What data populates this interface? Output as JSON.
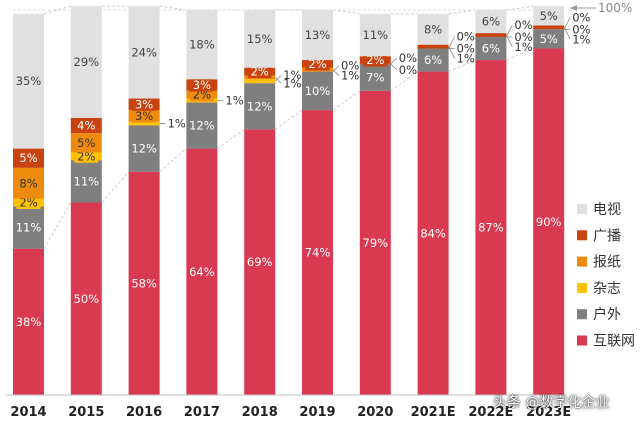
{
  "chart_data": {
    "type": "bar",
    "stacked": true,
    "categories": [
      "2014",
      "2015",
      "2016",
      "2017",
      "2018",
      "2019",
      "2020",
      "2021E",
      "2022E",
      "2023E"
    ],
    "series": [
      {
        "name": "互联网",
        "color": "#d93a52",
        "values": [
          38,
          50,
          58,
          64,
          69,
          74,
          79,
          84,
          87,
          90
        ]
      },
      {
        "name": "户外",
        "color": "#7f7f7f",
        "values": [
          11,
          11,
          12,
          12,
          12,
          10,
          7,
          6,
          6,
          5
        ]
      },
      {
        "name": "杂志",
        "color": "#ffc000",
        "values": [
          2,
          2,
          1,
          1,
          1,
          0,
          0,
          0,
          0,
          0
        ]
      },
      {
        "name": "报纸",
        "color": "#ee8b0f",
        "values": [
          8,
          5,
          3,
          2,
          1,
          1,
          0,
          0,
          0,
          0
        ]
      },
      {
        "name": "广播",
        "color": "#c84310",
        "values": [
          5,
          4,
          3,
          3,
          2,
          2,
          2,
          1,
          1,
          1
        ]
      },
      {
        "name": "电视",
        "color": "#e0e0e0",
        "values": [
          35,
          29,
          24,
          18,
          15,
          13,
          11,
          8,
          6,
          5
        ]
      }
    ],
    "legend_order": [
      "电视",
      "广播",
      "报纸",
      "杂志",
      "户外",
      "互联网"
    ],
    "legend_position": "right",
    "top_annotation": "100%",
    "ylim": [
      0,
      100
    ],
    "grid": false
  },
  "watermark": "头条 @数字化企业"
}
